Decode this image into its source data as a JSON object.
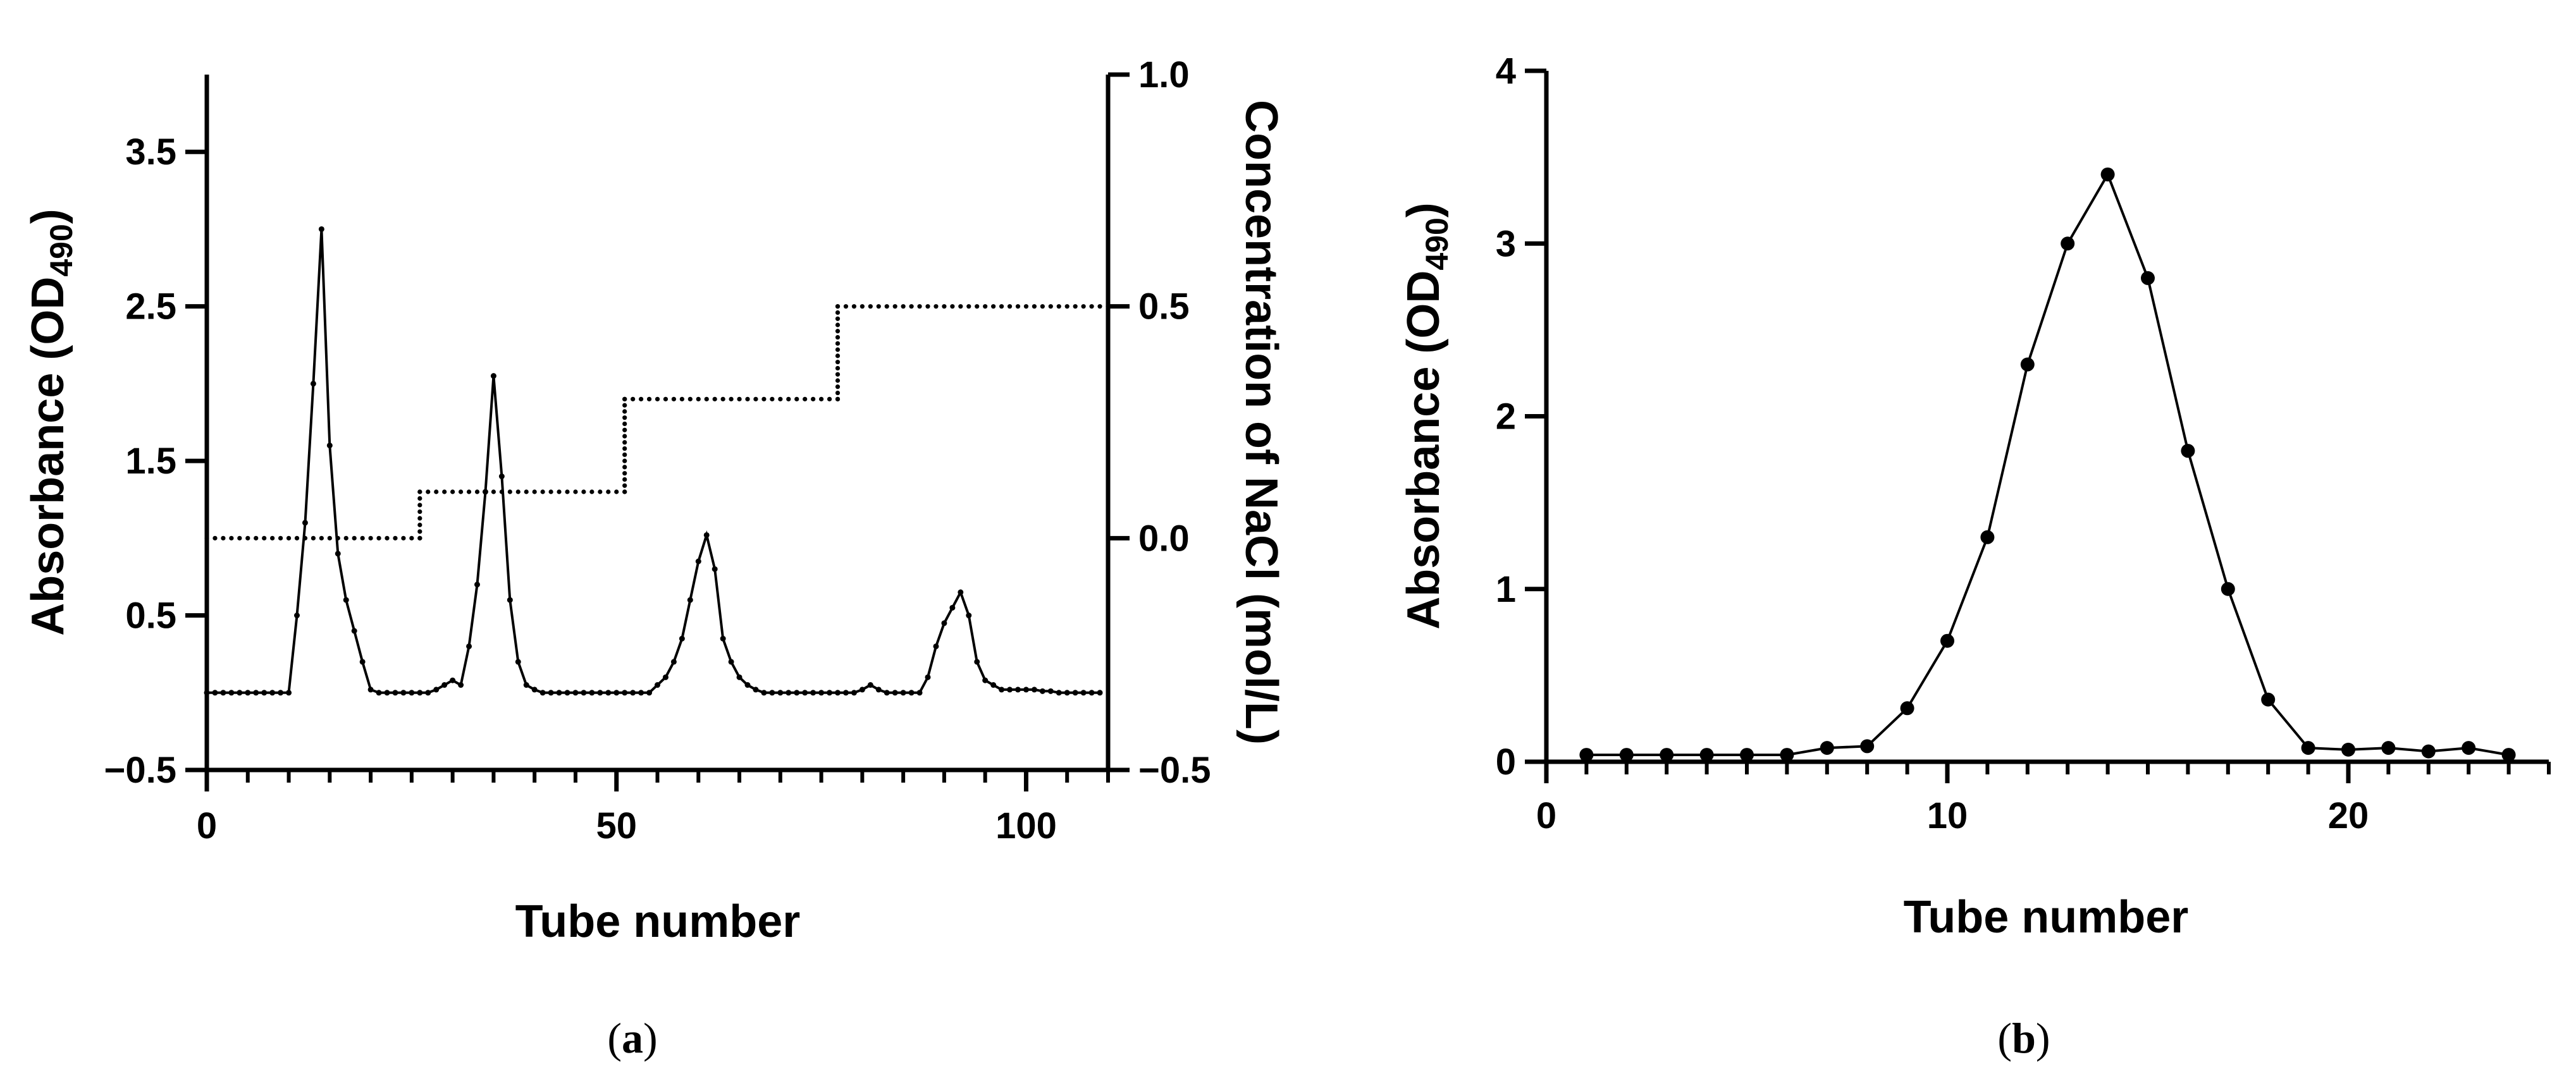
{
  "chart_data": [
    {
      "panel": "(a)",
      "type": "line",
      "xlabel": "Tube number",
      "ylabel": "Absorbance (OD",
      "ylabel_subscript": "490",
      "ylabel_close": ")",
      "y2label": "Concentration of NaCl (mol/L)",
      "xlim": [
        0,
        110
      ],
      "ylim": [
        -0.5,
        4.0
      ],
      "y2lim": [
        -0.5,
        1.0
      ],
      "x_ticks": [
        0,
        50,
        100
      ],
      "y_ticks": [
        -0.5,
        0.5,
        1.5,
        2.5,
        3.5
      ],
      "y_tick_labels": [
        "-0.5",
        "0.5",
        "1.5",
        "2.5",
        "3.5"
      ],
      "y2_ticks": [
        -0.5,
        0.0,
        0.5,
        1.0
      ],
      "y2_tick_labels": [
        "-0.5",
        "0.0",
        "0.5",
        "1.0"
      ],
      "grid": false,
      "series": [
        {
          "axis": "left",
          "style": "line-markers",
          "x": [
            0,
            1,
            2,
            3,
            4,
            5,
            6,
            7,
            8,
            9,
            10,
            11,
            12,
            13,
            14,
            15,
            16,
            17,
            18,
            19,
            20,
            21,
            22,
            23,
            24,
            25,
            26,
            27,
            28,
            29,
            30,
            31,
            32,
            33,
            34,
            35,
            36,
            37,
            38,
            39,
            40,
            41,
            42,
            43,
            44,
            45,
            46,
            47,
            48,
            49,
            50,
            51,
            52,
            53,
            54,
            55,
            56,
            57,
            58,
            59,
            60,
            61,
            62,
            63,
            64,
            65,
            66,
            67,
            68,
            69,
            70,
            71,
            72,
            73,
            74,
            75,
            76,
            77,
            78,
            79,
            80,
            81,
            82,
            83,
            84,
            85,
            86,
            87,
            88,
            89,
            90,
            91,
            92,
            93,
            94,
            95,
            96,
            97,
            98,
            99,
            100,
            101,
            102,
            103,
            104,
            105,
            106,
            107,
            108,
            109
          ],
          "values": [
            0,
            0,
            0,
            0,
            0,
            0,
            0,
            0,
            0,
            0,
            0,
            0.5,
            1.1,
            2.0,
            3.0,
            1.6,
            0.9,
            0.6,
            0.4,
            0.2,
            0.02,
            0,
            0,
            0,
            0,
            0,
            0,
            0,
            0.02,
            0.05,
            0.08,
            0.05,
            0.3,
            0.7,
            1.3,
            2.05,
            1.4,
            0.6,
            0.2,
            0.05,
            0.02,
            0,
            0,
            0,
            0,
            0,
            0,
            0,
            0,
            0,
            0,
            0,
            0,
            0,
            0,
            0.05,
            0.1,
            0.2,
            0.35,
            0.6,
            0.85,
            1.02,
            0.8,
            0.35,
            0.2,
            0.1,
            0.05,
            0.02,
            0,
            0,
            0,
            0,
            0,
            0,
            0,
            0,
            0,
            0,
            0,
            0,
            0.02,
            0.05,
            0.02,
            0,
            0,
            0,
            0,
            0,
            0.1,
            0.3,
            0.45,
            0.55,
            0.65,
            0.5,
            0.2,
            0.08,
            0.05,
            0.02,
            0.02,
            0.02,
            0.02,
            0.02,
            0.01,
            0.01,
            0,
            0,
            0,
            0,
            0,
            0
          ]
        },
        {
          "axis": "right",
          "style": "dotted-step",
          "x": [
            0,
            26,
            26,
            51,
            51,
            77,
            77,
            110
          ],
          "values": [
            0.0,
            0.0,
            0.1,
            0.1,
            0.3,
            0.3,
            0.5,
            0.5
          ]
        }
      ]
    },
    {
      "panel": "(b)",
      "type": "line",
      "xlabel": "Tube number",
      "ylabel": "Absorbance (OD",
      "ylabel_subscript": "490",
      "ylabel_close": ")",
      "xlim": [
        0,
        25
      ],
      "ylim": [
        0,
        4
      ],
      "x_ticks": [
        0,
        10,
        20
      ],
      "y_ticks": [
        0,
        1,
        2,
        3,
        4
      ],
      "grid": false,
      "series": [
        {
          "style": "line-markers",
          "x": [
            1,
            2,
            3,
            4,
            5,
            6,
            7,
            8,
            9,
            10,
            11,
            12,
            13,
            14,
            15,
            16,
            17,
            18,
            19,
            20,
            21,
            22,
            23,
            24
          ],
          "values": [
            0.04,
            0.04,
            0.04,
            0.04,
            0.04,
            0.04,
            0.08,
            0.09,
            0.31,
            0.7,
            1.3,
            2.3,
            3.0,
            3.4,
            2.8,
            1.8,
            1.0,
            0.36,
            0.08,
            0.07,
            0.08,
            0.06,
            0.08,
            0.04
          ]
        }
      ]
    }
  ],
  "panel_labels": {
    "a": {
      "open": "(",
      "letter": "a",
      "close": ")"
    },
    "b": {
      "open": "(",
      "letter": "b",
      "close": ")"
    }
  },
  "colors": {
    "ink": "#000000",
    "background": "#ffffff"
  }
}
